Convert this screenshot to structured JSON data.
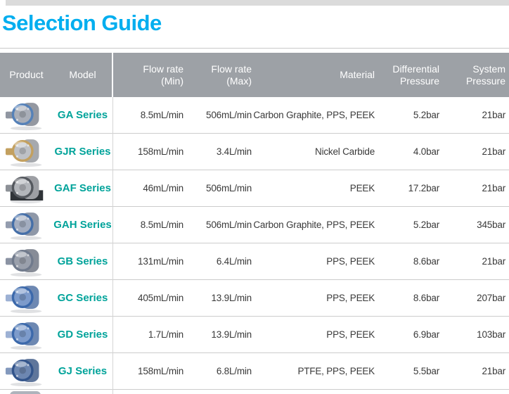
{
  "theme": {
    "title_color": "#00AEEF",
    "model_color": "#00A39A",
    "header_bg": "#9DA1A6",
    "header_text": "#FFFFFF",
    "row_border": "#CCCCCC",
    "body_text": "#3A3A3A",
    "top_bar": "#DBDBDB"
  },
  "page": {
    "title": "Selection Guide"
  },
  "table": {
    "headers": {
      "product": "Product",
      "model": "Model",
      "flow_min": {
        "line1": "Flow rate",
        "line2": "(Min)"
      },
      "flow_max": {
        "line1": "Flow rate",
        "line2": "(Max)"
      },
      "material": "Material",
      "diff": {
        "line1": "Differential",
        "line2": "Pressure"
      },
      "sys": {
        "line1": "System",
        "line2": "Pressure"
      }
    },
    "rows": [
      {
        "model": "GA Series",
        "flow_min": "8.5mL/min",
        "flow_max": "506mL/min",
        "material": "Carbon Graphite, PPS, PEEK",
        "diff_pressure": "5.2bar",
        "sys_pressure": "21bar",
        "image": {
          "name": "ga-series-pump",
          "body": "#A9AEB8",
          "accent": "#5581B8",
          "fitting": "#9096A1",
          "mount": "transparent"
        }
      },
      {
        "model": "GJR Series",
        "flow_min": "158mL/min",
        "flow_max": "3.4L/min",
        "material": "Nickel Carbide",
        "diff_pressure": "4.0bar",
        "sys_pressure": "21bar",
        "image": {
          "name": "gjr-series-pump",
          "body": "#BEC1C6",
          "accent": "#C3A05F",
          "fitting": "#C3A05F",
          "mount": "transparent"
        }
      },
      {
        "model": "GAF Series",
        "flow_min": "46mL/min",
        "flow_max": "506mL/min",
        "material": "PEEK",
        "diff_pressure": "17.2bar",
        "sys_pressure": "21bar",
        "image": {
          "name": "gaf-series-pump",
          "body": "#B3B6BB",
          "accent": "#54585E",
          "fitting": "#8D9197",
          "mount": "#2F3338"
        }
      },
      {
        "model": "GAH Series",
        "flow_min": "8.5mL/min",
        "flow_max": "506mL/min",
        "material": "Carbon Graphite, PPS, PEEK",
        "diff_pressure": "5.2bar",
        "sys_pressure": "345bar",
        "image": {
          "name": "gah-series-pump",
          "body": "#A3ADC0",
          "accent": "#456FA8",
          "fitting": "#939CAE",
          "mount": "transparent"
        }
      },
      {
        "model": "GB Series",
        "flow_min": "131mL/min",
        "flow_max": "6.4L/min",
        "material": "PPS, PEEK",
        "diff_pressure": "8.6bar",
        "sys_pressure": "21bar",
        "image": {
          "name": "gb-series-pump",
          "body": "#9AA0AC",
          "accent": "#707A8C",
          "fitting": "#8B93A3",
          "mount": "transparent"
        }
      },
      {
        "model": "GC Series",
        "flow_min": "405mL/min",
        "flow_max": "13.9L/min",
        "material": "PPS, PEEK",
        "diff_pressure": "8.6bar",
        "sys_pressure": "207bar",
        "image": {
          "name": "gc-series-pump",
          "body": "#7D9BCB",
          "accent": "#3C69AB",
          "fitting": "#9DB1D4",
          "mount": "transparent"
        }
      },
      {
        "model": "GD Series",
        "flow_min": "1.7L/min",
        "flow_max": "13.9L/min",
        "material": "PPS, PEEK",
        "diff_pressure": "6.9bar",
        "sys_pressure": "103bar",
        "image": {
          "name": "gd-series-pump",
          "body": "#7D9BCB",
          "accent": "#3C69AB",
          "fitting": "#9DB1D4",
          "mount": "transparent"
        }
      },
      {
        "model": "GJ Series",
        "flow_min": "158mL/min",
        "flow_max": "6.8L/min",
        "material": "PTFE, PPS, PEEK",
        "diff_pressure": "5.5bar",
        "sys_pressure": "21bar",
        "image": {
          "name": "gj-series-pump",
          "body": "#6D87B1",
          "accent": "#32548B",
          "fitting": "#8399BD",
          "mount": "transparent"
        }
      }
    ]
  }
}
